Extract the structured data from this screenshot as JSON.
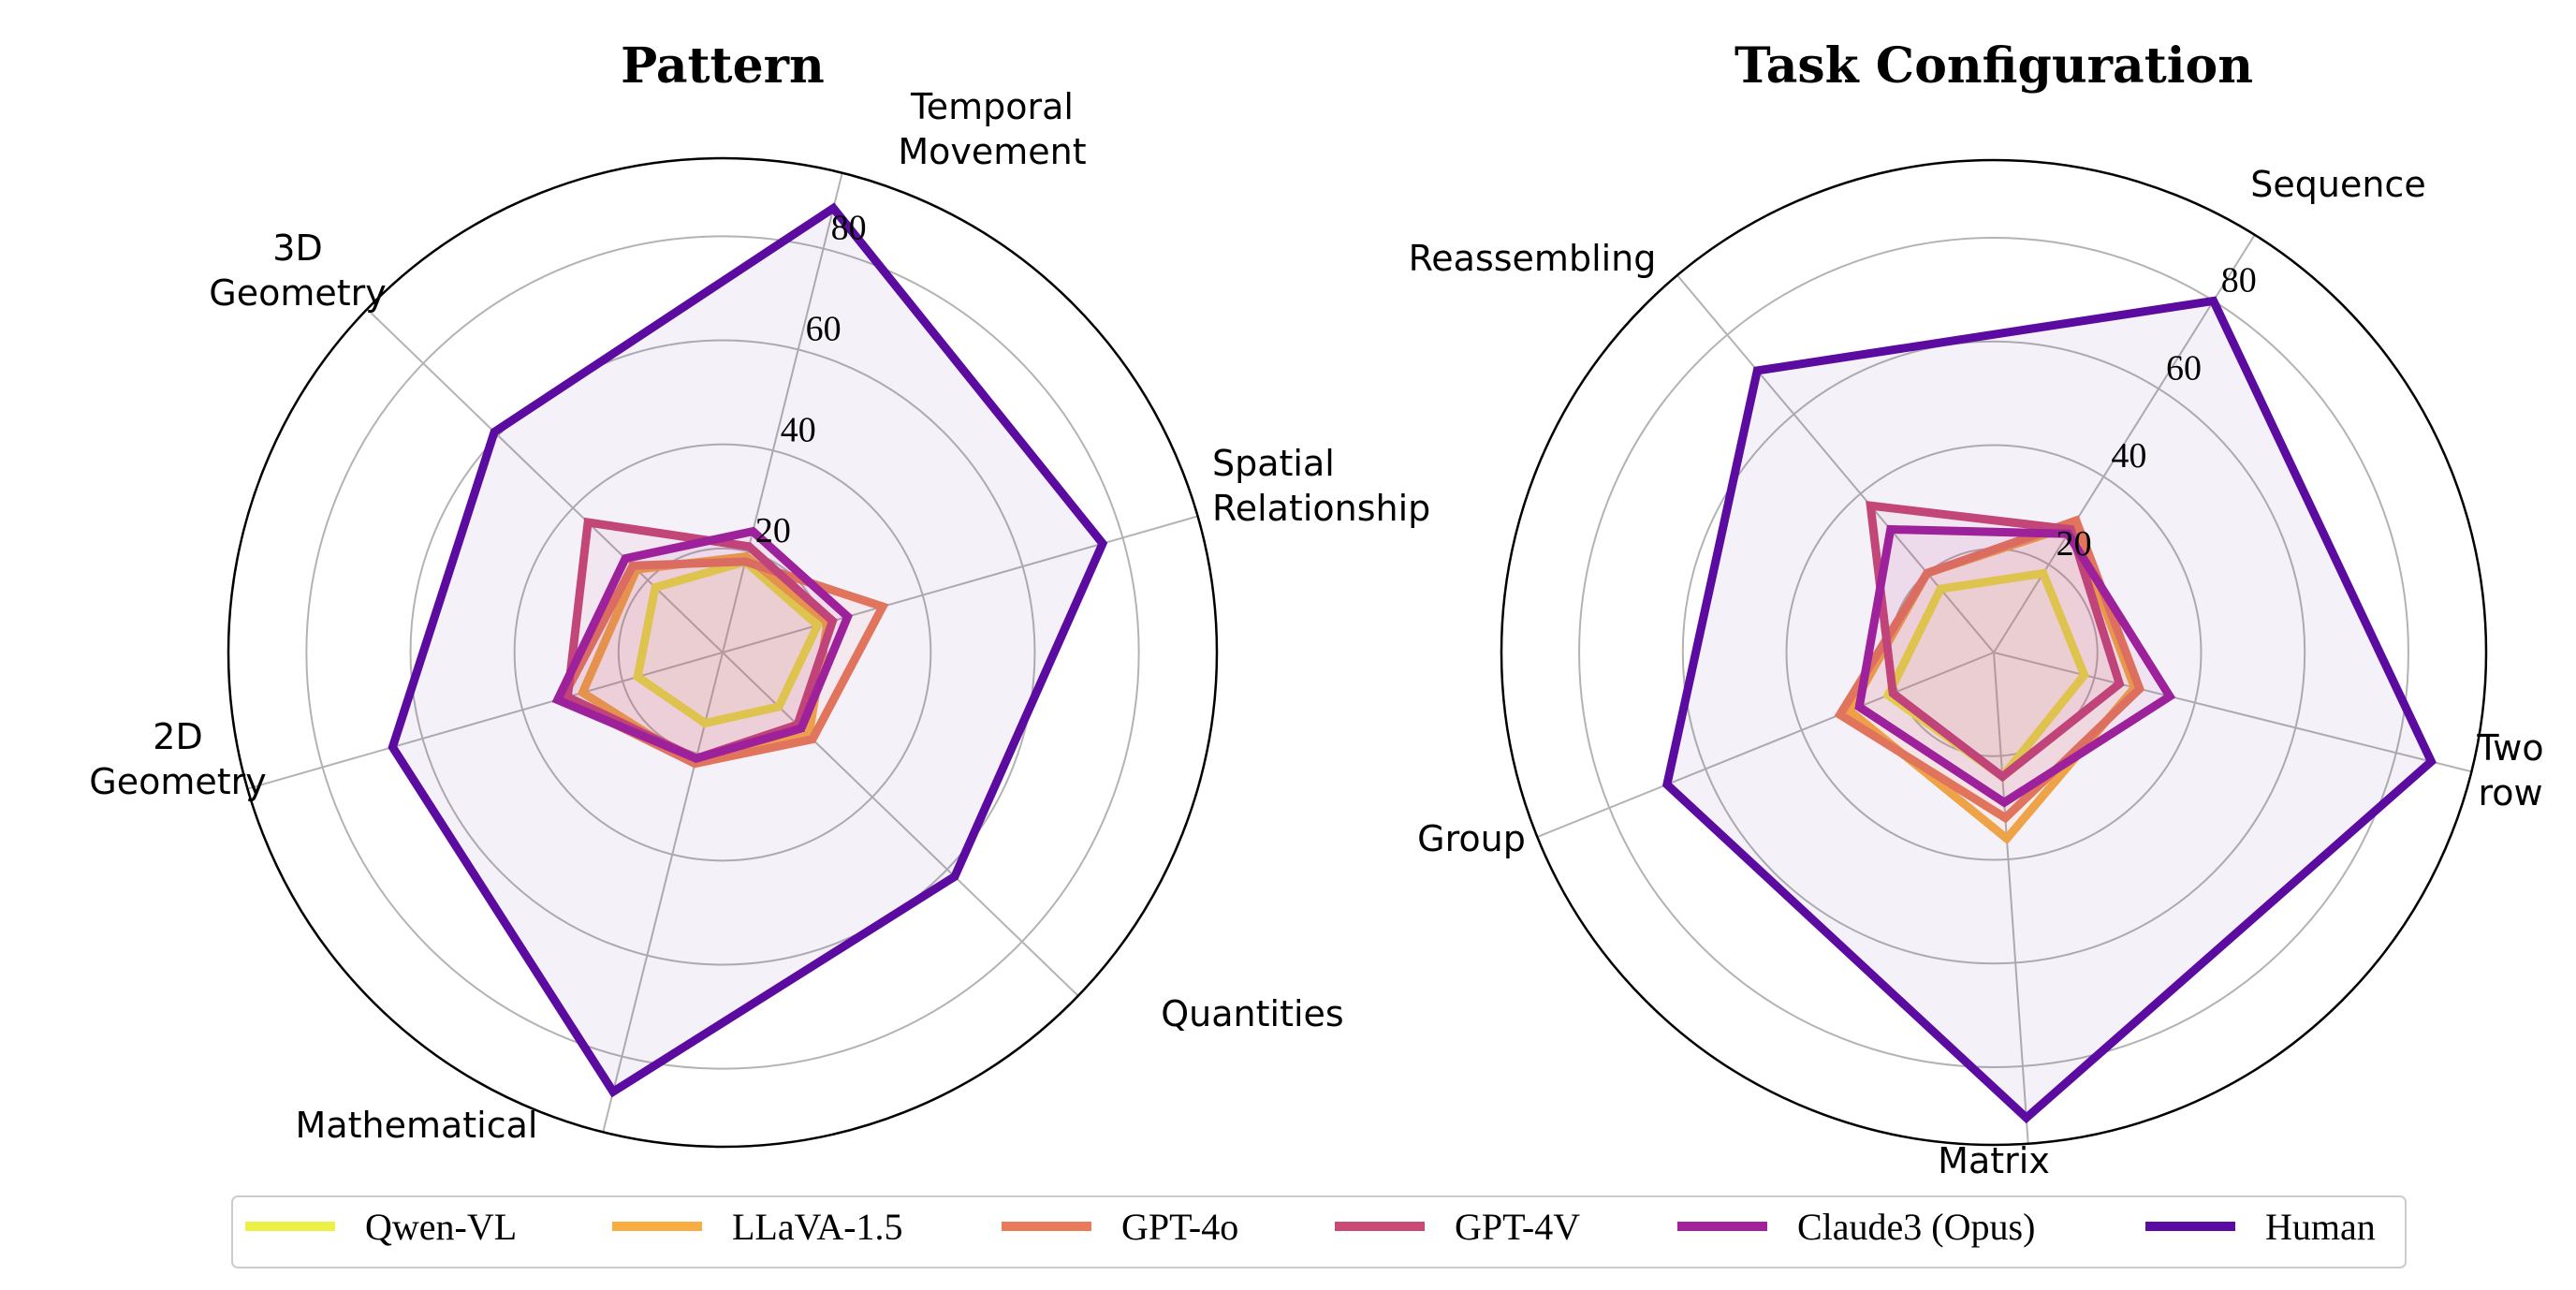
{
  "legend": [
    {
      "name": "Qwen-VL",
      "color": "#ecf146"
    },
    {
      "name": "LLaVA-1.5",
      "color": "#f8ad43"
    },
    {
      "name": "GPT-4o",
      "color": "#ea7b5a"
    },
    {
      "name": "GPT-4V",
      "color": "#c94a76"
    },
    {
      "name": "Claude3 (Opus)",
      "color": "#a2229c"
    },
    {
      "name": "Human",
      "color": "#5b0ba0"
    }
  ],
  "chart_data": [
    {
      "type": "radar",
      "title": "Pattern",
      "axes": [
        {
          "label": [
            "Temporal",
            "Movement"
          ]
        },
        {
          "label": [
            "Spatial",
            "Relationship"
          ]
        },
        {
          "label": [
            "Quantities"
          ]
        },
        {
          "label": [
            "Mathematical"
          ]
        },
        {
          "label": [
            "2D",
            "Geometry"
          ]
        },
        {
          "label": [
            "3D",
            "Geometry"
          ]
        }
      ],
      "rlim": [
        0,
        95
      ],
      "rticks": [
        20,
        40,
        60,
        80
      ],
      "rtick_labels": [
        "20",
        "40",
        "60",
        "80"
      ],
      "series": [
        {
          "name": "Qwen-VL",
          "values": [
            18,
            19,
            15,
            14,
            17,
            18
          ]
        },
        {
          "name": "LLaVA-1.5",
          "values": [
            19,
            21,
            23,
            22,
            28,
            23
          ]
        },
        {
          "name": "GPT-4o",
          "values": [
            18,
            32,
            24,
            22,
            32,
            24
          ]
        },
        {
          "name": "GPT-4V",
          "values": [
            21,
            22,
            20,
            21,
            31,
            36
          ]
        },
        {
          "name": "Claude3 (Opus)",
          "values": [
            24,
            25,
            21,
            21,
            33,
            26
          ]
        },
        {
          "name": "Human",
          "values": [
            88,
            76,
            62,
            87,
            66,
            61
          ]
        }
      ]
    },
    {
      "type": "radar",
      "title": "Task Configuration",
      "axes": [
        {
          "label": [
            "Sequence"
          ]
        },
        {
          "label": [
            "Two",
            "row"
          ]
        },
        {
          "label": [
            "Matrix"
          ]
        },
        {
          "label": [
            "Group"
          ]
        },
        {
          "label": [
            "Reassembling"
          ]
        }
      ],
      "rlim": [
        0,
        95
      ],
      "rticks": [
        20,
        40,
        60,
        80
      ],
      "rtick_labels": [
        "20",
        "40",
        "60",
        "80"
      ],
      "series": [
        {
          "name": "Qwen-VL",
          "values": [
            18,
            18,
            24,
            22,
            16
          ]
        },
        {
          "name": "LLaVA-1.5",
          "values": [
            29,
            28,
            36,
            30,
            20
          ]
        },
        {
          "name": "GPT-4o",
          "values": [
            30,
            29,
            32,
            32,
            20
          ]
        },
        {
          "name": "GPT-4V",
          "values": [
            28,
            25,
            24,
            21,
            37
          ]
        },
        {
          "name": "Claude3 (Opus)",
          "values": [
            27,
            35,
            29,
            28,
            31
          ]
        },
        {
          "name": "Human",
          "values": [
            80,
            87,
            90,
            68,
            71
          ]
        }
      ]
    }
  ]
}
